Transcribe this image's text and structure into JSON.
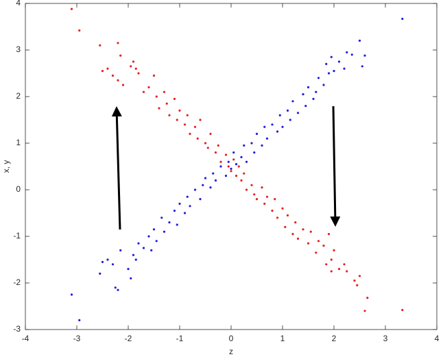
{
  "chart_data": {
    "type": "scatter",
    "xlabel": "z",
    "ylabel": "x, y",
    "xlim": [
      -4,
      4
    ],
    "ylim": [
      -3,
      4
    ],
    "xticks": [
      -4,
      -3,
      -2,
      -1,
      0,
      1,
      2,
      3,
      4
    ],
    "yticks": [
      -3,
      -2,
      -1,
      0,
      1,
      2,
      3,
      4
    ],
    "grid": false,
    "series": [
      {
        "color": "#e8201f",
        "x": [
          -3.1,
          -2.95,
          -2.55,
          -2.2,
          -2.15,
          -2.5,
          -2.4,
          -2.3,
          -2.2,
          -2.1,
          -1.95,
          -1.9,
          -1.85,
          -1.8,
          -1.7,
          -1.6,
          -1.5,
          -1.45,
          -1.4,
          -1.3,
          -1.25,
          -1.2,
          -1.1,
          -1.05,
          -1.0,
          -0.9,
          -0.85,
          -0.8,
          -0.7,
          -0.65,
          -0.6,
          -0.5,
          -0.45,
          -0.4,
          -0.3,
          -0.25,
          -0.2,
          -0.1,
          -0.05,
          0.0,
          0.05,
          0.1,
          0.15,
          0.2,
          0.25,
          0.3,
          0.4,
          0.45,
          0.5,
          0.6,
          0.65,
          0.7,
          0.8,
          0.85,
          0.9,
          1.0,
          1.05,
          1.1,
          1.2,
          1.25,
          1.3,
          1.4,
          1.5,
          1.55,
          1.65,
          1.7,
          1.8,
          1.9,
          1.95,
          2.0,
          2.1,
          2.2,
          2.25,
          2.4,
          2.5,
          2.45,
          2.6,
          2.65,
          3.33,
          1.95,
          1.85
        ],
        "values": [
          3.88,
          3.42,
          3.1,
          3.15,
          2.88,
          2.55,
          2.6,
          2.45,
          2.35,
          2.25,
          2.65,
          2.75,
          2.6,
          2.5,
          2.1,
          2.2,
          2.45,
          2.0,
          1.75,
          2.1,
          1.85,
          1.6,
          1.95,
          1.5,
          1.7,
          1.4,
          1.6,
          1.2,
          1.35,
          1.1,
          1.5,
          1.0,
          0.9,
          1.2,
          0.8,
          0.95,
          0.6,
          0.75,
          0.5,
          0.4,
          0.65,
          0.3,
          0.5,
          0.2,
          0.35,
          0.0,
          0.1,
          -0.1,
          -0.2,
          0.05,
          -0.3,
          -0.15,
          -0.45,
          -0.2,
          -0.6,
          -0.4,
          -0.8,
          -0.55,
          -0.95,
          -0.7,
          -1.05,
          -0.85,
          -1.15,
          -0.9,
          -1.35,
          -1.1,
          -1.2,
          -0.95,
          -1.5,
          -1.3,
          -1.7,
          -1.6,
          -1.75,
          -1.95,
          -1.85,
          -2.05,
          -2.6,
          -2.32,
          -2.58,
          -1.75,
          -1.6
        ]
      },
      {
        "color": "#1f1fe0",
        "x": [
          -3.1,
          -2.95,
          -2.55,
          -2.5,
          -2.4,
          -2.3,
          -2.25,
          -2.2,
          -2.15,
          -2.0,
          -1.95,
          -1.9,
          -1.85,
          -1.8,
          -1.7,
          -1.6,
          -1.55,
          -1.5,
          -1.45,
          -1.35,
          -1.3,
          -1.2,
          -1.1,
          -1.05,
          -1.0,
          -0.9,
          -0.85,
          -0.8,
          -0.7,
          -0.6,
          -0.55,
          -0.5,
          -0.4,
          -0.35,
          -0.3,
          -0.2,
          -0.1,
          -0.05,
          0.0,
          0.05,
          0.1,
          0.2,
          0.25,
          0.3,
          0.4,
          0.45,
          0.5,
          0.6,
          0.65,
          0.7,
          0.8,
          0.9,
          0.95,
          1.0,
          1.1,
          1.15,
          1.2,
          1.3,
          1.4,
          1.45,
          1.5,
          1.6,
          1.65,
          1.7,
          1.8,
          1.85,
          1.9,
          1.95,
          2.0,
          2.1,
          2.2,
          2.25,
          2.35,
          2.5,
          2.55,
          2.6,
          3.33
        ],
        "values": [
          -2.25,
          -2.8,
          -1.8,
          -1.55,
          -1.5,
          -1.6,
          -2.1,
          -2.15,
          -1.3,
          -1.7,
          -1.9,
          -1.4,
          -1.5,
          -1.15,
          -1.25,
          -1.0,
          -1.3,
          -0.85,
          -1.1,
          -0.6,
          -0.9,
          -0.7,
          -0.45,
          -0.75,
          -0.3,
          -0.5,
          -0.15,
          -0.35,
          0.0,
          -0.2,
          0.1,
          0.25,
          0.05,
          0.35,
          0.2,
          0.5,
          0.3,
          0.6,
          0.45,
          0.8,
          0.55,
          0.7,
          0.95,
          0.6,
          1.0,
          0.8,
          1.2,
          0.95,
          1.35,
          1.1,
          1.4,
          1.25,
          1.6,
          1.35,
          1.7,
          1.5,
          1.9,
          1.65,
          2.05,
          1.8,
          2.2,
          1.95,
          2.1,
          2.4,
          2.25,
          2.7,
          2.5,
          2.85,
          2.55,
          2.75,
          2.6,
          2.95,
          2.9,
          3.2,
          2.65,
          2.88,
          3.67
        ]
      }
    ]
  }
}
